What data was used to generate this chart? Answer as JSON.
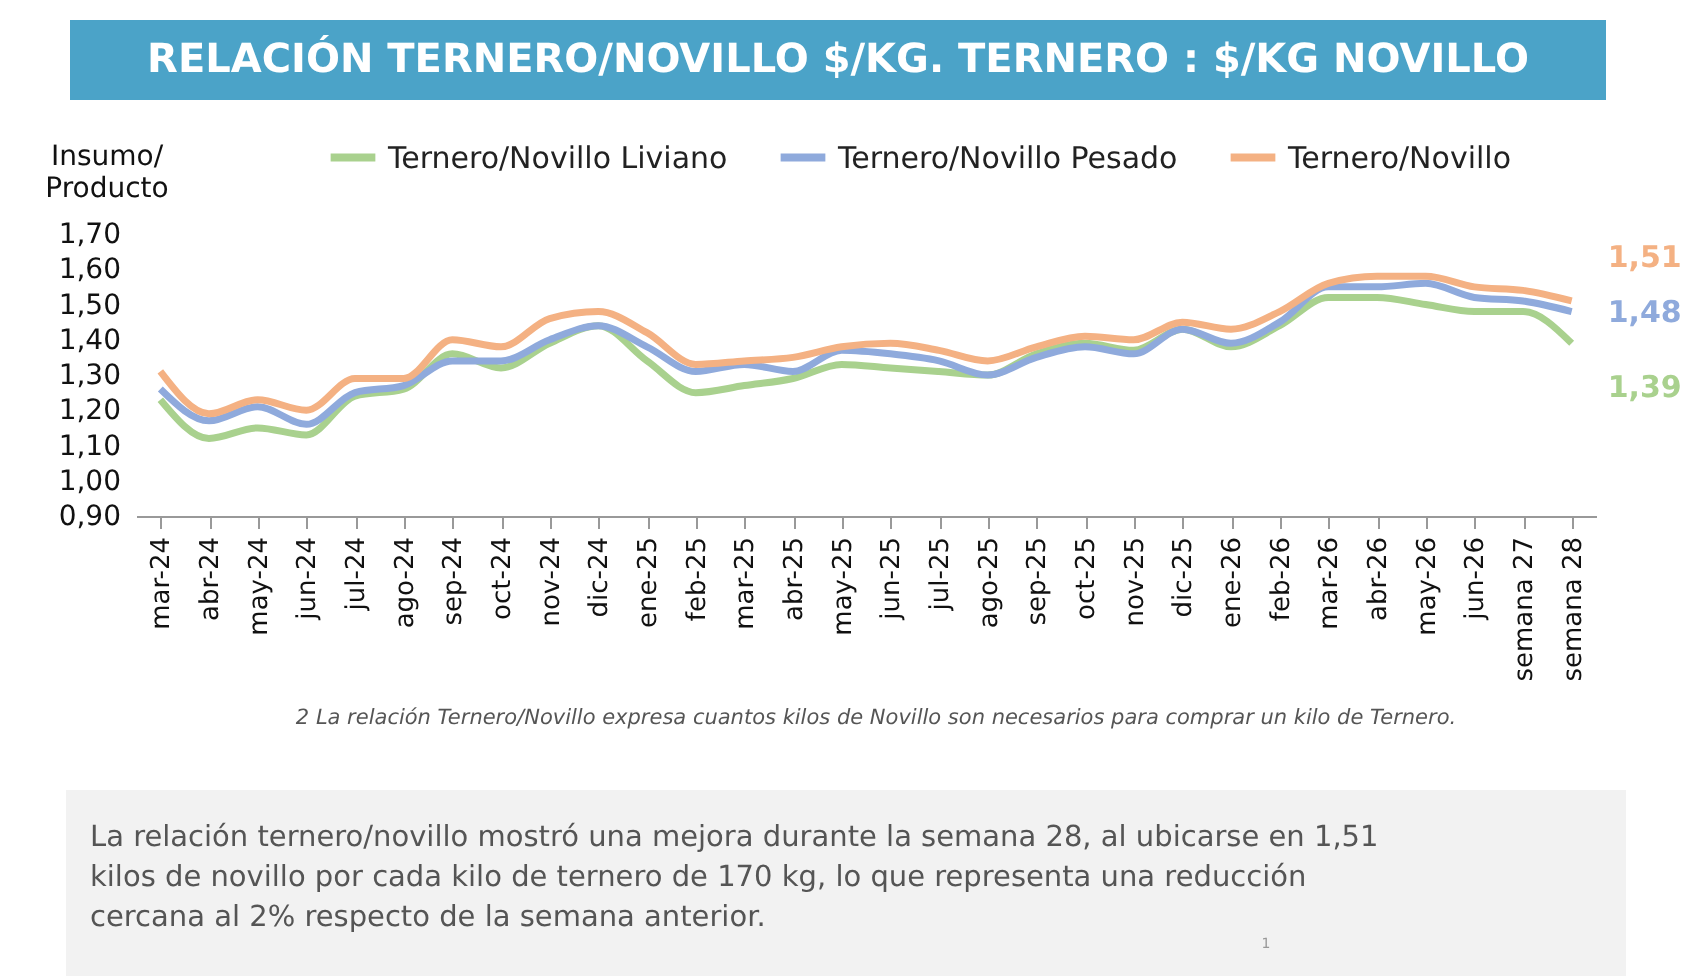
{
  "chart_data": {
    "type": "line",
    "title": "RELACIÓN TERNERO/NOVILLO $/KG. TERNERO : $/KG NOVILLO",
    "ylabel": "Insumo/ Producto",
    "categories": [
      "mar-24",
      "abr-24",
      "may-24",
      "jun-24",
      "jul-24",
      "ago-24",
      "sep-24",
      "oct-24",
      "nov-24",
      "dic-24",
      "ene-25",
      "feb-25",
      "mar-25",
      "abr-25",
      "may-25",
      "jun-25",
      "jul-25",
      "ago-25",
      "sep-25",
      "oct-25",
      "nov-25",
      "dic-25",
      "ene-26",
      "feb-26",
      "mar-26",
      "abr-26",
      "may-26",
      "jun-26",
      "semana 27",
      "semana 28"
    ],
    "series": [
      {
        "name": "Ternero/Novillo Liviano",
        "color": "#a9d18e",
        "values": [
          1.23,
          1.12,
          1.15,
          1.13,
          1.24,
          1.26,
          1.36,
          1.32,
          1.39,
          1.44,
          1.34,
          1.25,
          1.27,
          1.29,
          1.33,
          1.32,
          1.31,
          1.3,
          1.36,
          1.39,
          1.37,
          1.43,
          1.38,
          1.44,
          1.52,
          1.52,
          1.5,
          1.48,
          1.48,
          1.39
        ],
        "value_labels": [
          null,
          null,
          null,
          null,
          null,
          null,
          null,
          null,
          null,
          null,
          null,
          null,
          null,
          null,
          null,
          null,
          null,
          null,
          null,
          null,
          null,
          null,
          null,
          null,
          null,
          null,
          null,
          null,
          null,
          "1,39"
        ]
      },
      {
        "name": "Ternero/Novillo Pesado",
        "color": "#8faadc",
        "values": [
          1.26,
          1.17,
          1.21,
          1.16,
          1.25,
          1.27,
          1.34,
          1.34,
          1.4,
          1.44,
          1.38,
          1.31,
          1.33,
          1.31,
          1.37,
          1.36,
          1.34,
          1.3,
          1.35,
          1.38,
          1.36,
          1.43,
          1.39,
          1.45,
          1.55,
          1.55,
          1.56,
          1.52,
          1.51,
          1.48
        ],
        "value_labels": [
          null,
          null,
          null,
          null,
          null,
          null,
          null,
          null,
          null,
          null,
          null,
          null,
          null,
          null,
          null,
          null,
          null,
          null,
          null,
          null,
          null,
          null,
          null,
          null,
          null,
          null,
          null,
          null,
          null,
          "1,48"
        ]
      },
      {
        "name": "Ternero/Novillo",
        "color": "#f4b183",
        "values": [
          1.31,
          1.19,
          1.23,
          1.2,
          1.29,
          1.29,
          1.4,
          1.38,
          1.46,
          1.48,
          1.42,
          1.33,
          1.34,
          1.35,
          1.38,
          1.39,
          1.37,
          1.34,
          1.38,
          1.41,
          1.4,
          1.45,
          1.43,
          1.48,
          1.56,
          1.58,
          1.58,
          1.55,
          1.54,
          1.51
        ],
        "value_labels": [
          null,
          null,
          null,
          null,
          null,
          null,
          null,
          null,
          null,
          null,
          null,
          null,
          null,
          null,
          null,
          null,
          null,
          null,
          null,
          null,
          null,
          null,
          null,
          null,
          null,
          null,
          null,
          null,
          null,
          "1,51"
        ]
      }
    ],
    "ylim": [
      0.9,
      1.7
    ],
    "yticks": [
      {
        "value": 0.9,
        "label": "0,90"
      },
      {
        "value": 1.0,
        "label": "1,00"
      },
      {
        "value": 1.1,
        "label": "1,10"
      },
      {
        "value": 1.2,
        "label": "1,20"
      },
      {
        "value": 1.3,
        "label": "1,30"
      },
      {
        "value": 1.4,
        "label": "1,40"
      },
      {
        "value": 1.5,
        "label": "1,50"
      },
      {
        "value": 1.6,
        "label": "1,60"
      },
      {
        "value": 1.7,
        "label": "1,70"
      }
    ],
    "grid": false,
    "legend": "top",
    "marker": "none",
    "line_style": "solid",
    "annotations": [
      "2 La relación Ternero/Novillo expresa cuantos kilos de Novillo son necesarios para comprar un kilo de Ternero.",
      "La relación ternero/novillo mostró una mejora durante la semana 28, al ubicarse en 1,51 kilos de novillo por cada kilo de ternero de 170 kg, lo que representa una reducción cercana al 2% respecto de la semana anterior.",
      "1"
    ]
  }
}
